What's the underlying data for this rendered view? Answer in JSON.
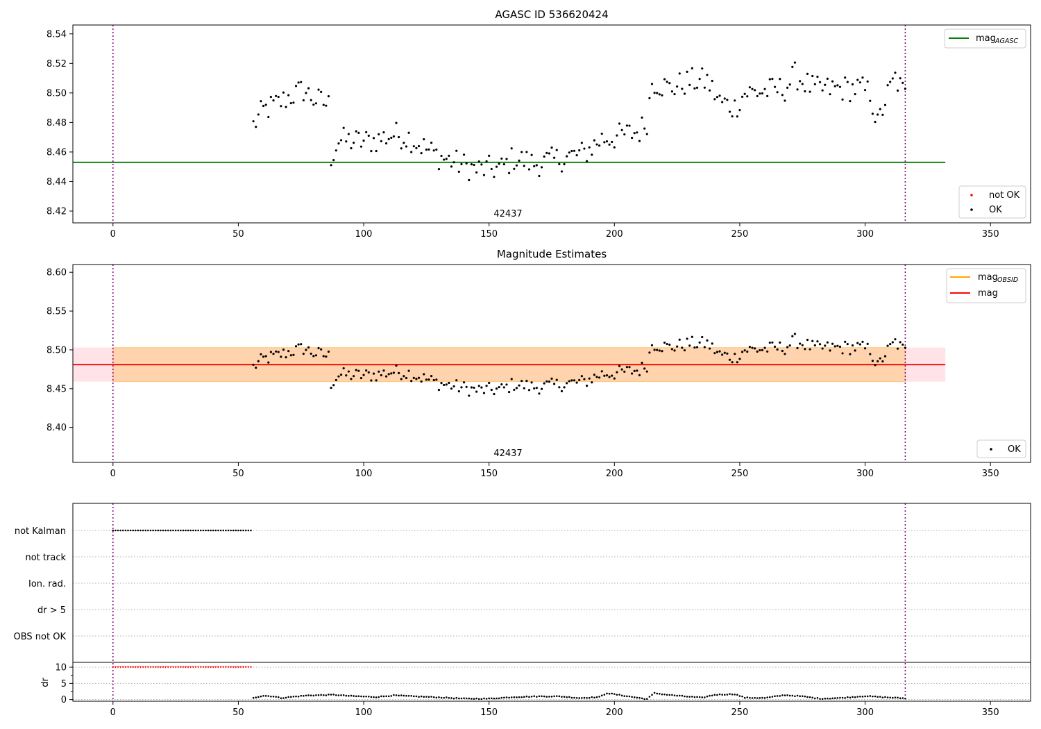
{
  "chart_data": [
    {
      "type": "scatter",
      "title": "AGASC ID 536620424",
      "xlim": [
        -16,
        366
      ],
      "ylim": [
        8.412,
        8.546
      ],
      "xticks": [
        0,
        50,
        100,
        150,
        200,
        250,
        300,
        350
      ],
      "yticks": [
        8.42,
        8.44,
        8.46,
        8.48,
        8.5,
        8.52,
        8.54
      ],
      "obsid_label": "42437",
      "obs_lines_x": [
        0,
        316
      ],
      "mag_agasc": 8.453,
      "mag_line_xrange": [
        -16,
        332
      ],
      "legend_lines": [
        {
          "label": "mag",
          "sub": "AGASC",
          "color": "#008000"
        }
      ],
      "legend_points": [
        {
          "label": "not OK",
          "color": "#ff0000"
        },
        {
          "label": "OK",
          "color": "#000000"
        }
      ],
      "ok_xrange": [
        56,
        316
      ],
      "ok_anchors": [
        [
          56,
          8.478
        ],
        [
          60,
          8.488
        ],
        [
          65,
          8.492
        ],
        [
          70,
          8.497
        ],
        [
          76,
          8.502
        ],
        [
          80,
          8.496
        ],
        [
          86,
          8.492
        ],
        [
          87,
          8.457
        ],
        [
          90,
          8.468
        ],
        [
          100,
          8.467
        ],
        [
          105,
          8.468
        ],
        [
          112,
          8.472
        ],
        [
          118,
          8.47
        ],
        [
          125,
          8.462
        ],
        [
          130,
          8.457
        ],
        [
          138,
          8.452
        ],
        [
          145,
          8.448
        ],
        [
          155,
          8.449
        ],
        [
          160,
          8.456
        ],
        [
          168,
          8.452
        ],
        [
          175,
          8.454
        ],
        [
          182,
          8.457
        ],
        [
          188,
          8.459
        ],
        [
          195,
          8.469
        ],
        [
          200,
          8.47
        ],
        [
          205,
          8.472
        ],
        [
          210,
          8.474
        ],
        [
          213,
          8.481
        ],
        [
          215,
          8.508
        ],
        [
          222,
          8.503
        ],
        [
          230,
          8.508
        ],
        [
          237,
          8.508
        ],
        [
          242,
          8.494
        ],
        [
          248,
          8.49
        ],
        [
          252,
          8.5
        ],
        [
          260,
          8.501
        ],
        [
          268,
          8.503
        ],
        [
          272,
          8.512
        ],
        [
          280,
          8.502
        ],
        [
          290,
          8.503
        ],
        [
          298,
          8.503
        ],
        [
          302,
          8.5
        ],
        [
          305,
          8.478
        ],
        [
          308,
          8.495
        ],
        [
          312,
          8.51
        ],
        [
          316,
          8.498
        ]
      ]
    },
    {
      "type": "scatter",
      "title": "Magnitude Estimates",
      "xlim": [
        -16,
        366
      ],
      "ylim": [
        8.355,
        8.61
      ],
      "xticks": [
        0,
        50,
        100,
        150,
        200,
        250,
        300,
        350
      ],
      "yticks": [
        8.4,
        8.45,
        8.5,
        8.55,
        8.6
      ],
      "obsid_label": "42437",
      "obs_lines_x": [
        0,
        316
      ],
      "mag": 8.481,
      "mag_band": [
        8.459,
        8.503
      ],
      "mag_obsid": 8.481,
      "mag_obsid_band": [
        8.459,
        8.503
      ],
      "legend_lines": [
        {
          "label": "mag",
          "sub": "OBSID",
          "color": "#ffa500"
        },
        {
          "label": "mag",
          "sub": "",
          "color": "#ff0000"
        }
      ],
      "legend_points": [
        {
          "label": "OK",
          "color": "#000000"
        }
      ]
    },
    {
      "type": "scatter",
      "title": "",
      "xlim": [
        -16,
        366
      ],
      "xticks": [
        0,
        50,
        100,
        150,
        200,
        250,
        300,
        350
      ],
      "flag_labels": [
        "not Kalman",
        "not track",
        "Ion. rad.",
        "dr > 5",
        "OBS not OK"
      ],
      "not_kalman_xrange": [
        0,
        55
      ],
      "dr_label": "dr",
      "dr_ylim": [
        -0.5,
        11.5
      ],
      "dr_yticks": [
        0,
        5,
        10
      ],
      "dr_clipped_value": 10,
      "dr_clipped_xrange": [
        0,
        55
      ],
      "dr_anchors": [
        [
          56,
          0.6
        ],
        [
          60,
          1.2
        ],
        [
          64,
          1.0
        ],
        [
          67,
          0.5
        ],
        [
          72,
          0.9
        ],
        [
          78,
          1.3
        ],
        [
          84,
          1.4
        ],
        [
          88,
          1.5
        ],
        [
          95,
          1.1
        ],
        [
          105,
          0.8
        ],
        [
          112,
          1.3
        ],
        [
          120,
          1.0
        ],
        [
          130,
          0.7
        ],
        [
          140,
          0.3
        ],
        [
          150,
          0.3
        ],
        [
          160,
          0.8
        ],
        [
          170,
          1.0
        ],
        [
          178,
          1.0
        ],
        [
          186,
          0.5
        ],
        [
          194,
          0.8
        ],
        [
          197,
          2.0
        ],
        [
          203,
          1.3
        ],
        [
          210,
          0.5
        ],
        [
          213,
          0.2
        ],
        [
          216,
          2.0
        ],
        [
          220,
          1.6
        ],
        [
          228,
          1.0
        ],
        [
          235,
          0.6
        ],
        [
          240,
          1.5
        ],
        [
          248,
          1.7
        ],
        [
          252,
          0.6
        ],
        [
          260,
          0.5
        ],
        [
          268,
          1.4
        ],
        [
          275,
          1.0
        ],
        [
          282,
          0.3
        ],
        [
          290,
          0.5
        ],
        [
          300,
          1.1
        ],
        [
          306,
          0.8
        ],
        [
          316,
          0.4
        ]
      ]
    }
  ]
}
